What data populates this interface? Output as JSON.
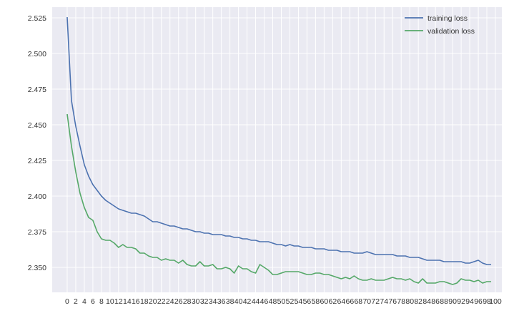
{
  "chart_data": {
    "type": "line",
    "title": "",
    "xlabel": "",
    "ylabel": "",
    "x": [
      0,
      1,
      2,
      3,
      4,
      5,
      6,
      7,
      8,
      9,
      10,
      11,
      12,
      13,
      14,
      15,
      16,
      17,
      18,
      19,
      20,
      21,
      22,
      23,
      24,
      25,
      26,
      27,
      28,
      29,
      30,
      31,
      32,
      33,
      34,
      35,
      36,
      37,
      38,
      39,
      40,
      41,
      42,
      43,
      44,
      45,
      46,
      47,
      48,
      49,
      50,
      51,
      52,
      53,
      54,
      55,
      56,
      57,
      58,
      59,
      60,
      61,
      62,
      63,
      64,
      65,
      66,
      67,
      68,
      69,
      70,
      71,
      72,
      73,
      74,
      75,
      76,
      77,
      78,
      79,
      80,
      81,
      82,
      83,
      84,
      85,
      86,
      87,
      88,
      89,
      90,
      91,
      92,
      93,
      94,
      95,
      96,
      97,
      98,
      99
    ],
    "xticks": [
      0,
      2,
      4,
      6,
      8,
      10,
      12,
      14,
      16,
      18,
      20,
      22,
      24,
      26,
      28,
      30,
      32,
      34,
      36,
      38,
      40,
      42,
      44,
      46,
      48,
      50,
      52,
      54,
      56,
      58,
      60,
      62,
      64,
      66,
      68,
      70,
      72,
      74,
      76,
      78,
      80,
      82,
      84,
      86,
      88,
      90,
      92,
      94,
      96,
      98,
      100
    ],
    "xlim": [
      -3.5,
      101.5
    ],
    "yticks": [
      2.35,
      2.375,
      2.4,
      2.425,
      2.45,
      2.475,
      2.5,
      2.525
    ],
    "ytick_labels": [
      "2.350",
      "2.375",
      "2.400",
      "2.425",
      "2.450",
      "2.475",
      "2.500",
      "2.525"
    ],
    "ylim": [
      2.3325,
      2.5325
    ],
    "grid": true,
    "legend_position": "top-right",
    "series": [
      {
        "name": "training loss",
        "color": "#4c72b0",
        "values": [
          2.5255,
          2.467,
          2.449,
          2.435,
          2.422,
          2.414,
          2.408,
          2.404,
          2.4,
          2.397,
          2.395,
          2.393,
          2.391,
          2.39,
          2.389,
          2.388,
          2.388,
          2.387,
          2.386,
          2.384,
          2.382,
          2.382,
          2.381,
          2.38,
          2.379,
          2.379,
          2.378,
          2.377,
          2.377,
          2.376,
          2.375,
          2.375,
          2.374,
          2.374,
          2.373,
          2.373,
          2.373,
          2.372,
          2.372,
          2.371,
          2.371,
          2.37,
          2.37,
          2.369,
          2.369,
          2.368,
          2.368,
          2.368,
          2.367,
          2.366,
          2.366,
          2.365,
          2.366,
          2.365,
          2.365,
          2.364,
          2.364,
          2.364,
          2.363,
          2.363,
          2.363,
          2.362,
          2.362,
          2.362,
          2.361,
          2.361,
          2.361,
          2.36,
          2.36,
          2.36,
          2.361,
          2.36,
          2.359,
          2.359,
          2.359,
          2.359,
          2.359,
          2.358,
          2.358,
          2.358,
          2.357,
          2.357,
          2.357,
          2.356,
          2.355,
          2.355,
          2.355,
          2.355,
          2.354,
          2.354,
          2.354,
          2.354,
          2.354,
          2.353,
          2.353,
          2.354,
          2.355,
          2.353,
          2.352,
          2.352
        ]
      },
      {
        "name": "validation loss",
        "color": "#55a868",
        "values": [
          2.4575,
          2.435,
          2.417,
          2.402,
          2.392,
          2.385,
          2.383,
          2.375,
          2.37,
          2.369,
          2.369,
          2.367,
          2.364,
          2.366,
          2.364,
          2.364,
          2.363,
          2.36,
          2.36,
          2.358,
          2.357,
          2.357,
          2.355,
          2.356,
          2.355,
          2.355,
          2.353,
          2.355,
          2.352,
          2.351,
          2.351,
          2.354,
          2.351,
          2.351,
          2.352,
          2.349,
          2.349,
          2.35,
          2.349,
          2.346,
          2.351,
          2.349,
          2.349,
          2.347,
          2.346,
          2.352,
          2.35,
          2.348,
          2.345,
          2.345,
          2.346,
          2.347,
          2.347,
          2.347,
          2.347,
          2.346,
          2.345,
          2.345,
          2.346,
          2.346,
          2.345,
          2.345,
          2.344,
          2.343,
          2.342,
          2.343,
          2.342,
          2.344,
          2.342,
          2.341,
          2.341,
          2.342,
          2.341,
          2.341,
          2.341,
          2.342,
          2.343,
          2.342,
          2.342,
          2.341,
          2.342,
          2.34,
          2.339,
          2.342,
          2.339,
          2.339,
          2.339,
          2.34,
          2.34,
          2.339,
          2.338,
          2.339,
          2.342,
          2.341,
          2.341,
          2.34,
          2.341,
          2.339,
          2.34,
          2.34
        ]
      }
    ]
  }
}
